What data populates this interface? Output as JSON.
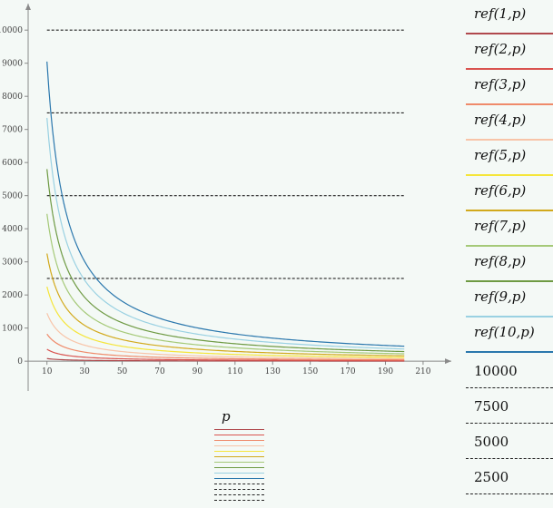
{
  "chart_data": {
    "type": "line",
    "xlim": [
      0,
      225
    ],
    "ylim": [
      -900,
      10800
    ],
    "x_ticks": [
      10,
      30,
      50,
      70,
      90,
      110,
      130,
      150,
      170,
      190,
      210
    ],
    "y_ticks": [
      0,
      1000,
      2000,
      3000,
      4000,
      5000,
      6000,
      7000,
      8000,
      9000,
      10000
    ],
    "x_range": [
      10,
      200
    ],
    "series": [
      {
        "name": "ref(1,p)",
        "k": 800,
        "color": "#b0494d"
      },
      {
        "name": "ref(2,p)",
        "k": 3600,
        "color": "#d9534f"
      },
      {
        "name": "ref(3,p)",
        "k": 8200,
        "color": "#ef8a6a"
      },
      {
        "name": "ref(4,p)",
        "k": 14500,
        "color": "#f8c4a8"
      },
      {
        "name": "ref(5,p)",
        "k": 22500,
        "color": "#f5e53a"
      },
      {
        "name": "ref(6,p)",
        "k": 32500,
        "color": "#d2a91c"
      },
      {
        "name": "ref(7,p)",
        "k": 44500,
        "color": "#a5c978"
      },
      {
        "name": "ref(8,p)",
        "k": 58000,
        "color": "#6e9a43"
      },
      {
        "name": "ref(9,p)",
        "k": 73500,
        "color": "#9ad1e2"
      },
      {
        "name": "ref(10,p)",
        "k": 90500,
        "color": "#2a77ad"
      }
    ],
    "reference_lines": [
      {
        "name": "10000",
        "y": 10000
      },
      {
        "name": "7500",
        "y": 7500
      },
      {
        "name": "5000",
        "y": 5000
      },
      {
        "name": "2500",
        "y": 2500
      }
    ],
    "xlabel": "p",
    "grid": false
  }
}
